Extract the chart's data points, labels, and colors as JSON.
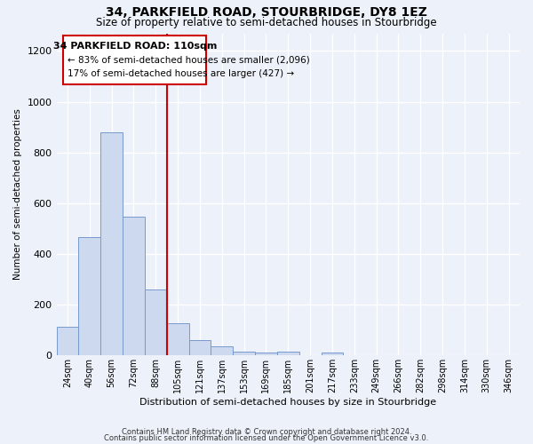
{
  "title": "34, PARKFIELD ROAD, STOURBRIDGE, DY8 1EZ",
  "subtitle": "Size of property relative to semi-detached houses in Stourbridge",
  "xlabel": "Distribution of semi-detached houses by size in Stourbridge",
  "ylabel": "Number of semi-detached properties",
  "bin_labels": [
    "24sqm",
    "40sqm",
    "56sqm",
    "72sqm",
    "88sqm",
    "105sqm",
    "121sqm",
    "137sqm",
    "153sqm",
    "169sqm",
    "185sqm",
    "201sqm",
    "217sqm",
    "233sqm",
    "249sqm",
    "266sqm",
    "282sqm",
    "298sqm",
    "314sqm",
    "330sqm",
    "346sqm"
  ],
  "bar_heights": [
    110,
    465,
    880,
    545,
    260,
    125,
    60,
    35,
    15,
    10,
    15,
    0,
    10,
    0,
    0,
    0,
    0,
    0,
    0,
    0,
    0
  ],
  "bar_color": "#cdd9ee",
  "bar_edge_color": "#7799cc",
  "background_color": "#edf1f9",
  "grid_color": "#ffffff",
  "annotation_box_color": "#ffffff",
  "annotation_box_edge": "#cc0000",
  "vline_color": "#cc0000",
  "vline_x": 5,
  "property_label": "34 PARKFIELD ROAD: 110sqm",
  "pct_smaller": 83,
  "n_smaller": 2096,
  "pct_larger": 17,
  "n_larger": 427,
  "ylim": [
    0,
    1270
  ],
  "yticks": [
    0,
    200,
    400,
    600,
    800,
    1000,
    1200
  ],
  "footer1": "Contains HM Land Registry data © Crown copyright and database right 2024.",
  "footer2": "Contains public sector information licensed under the Open Government Licence v3.0.",
  "title_fontsize": 10,
  "subtitle_fontsize": 8.5,
  "annotation_fontsize": 8,
  "ylabel_fontsize": 7.5,
  "xlabel_fontsize": 8,
  "footer_fontsize": 6
}
